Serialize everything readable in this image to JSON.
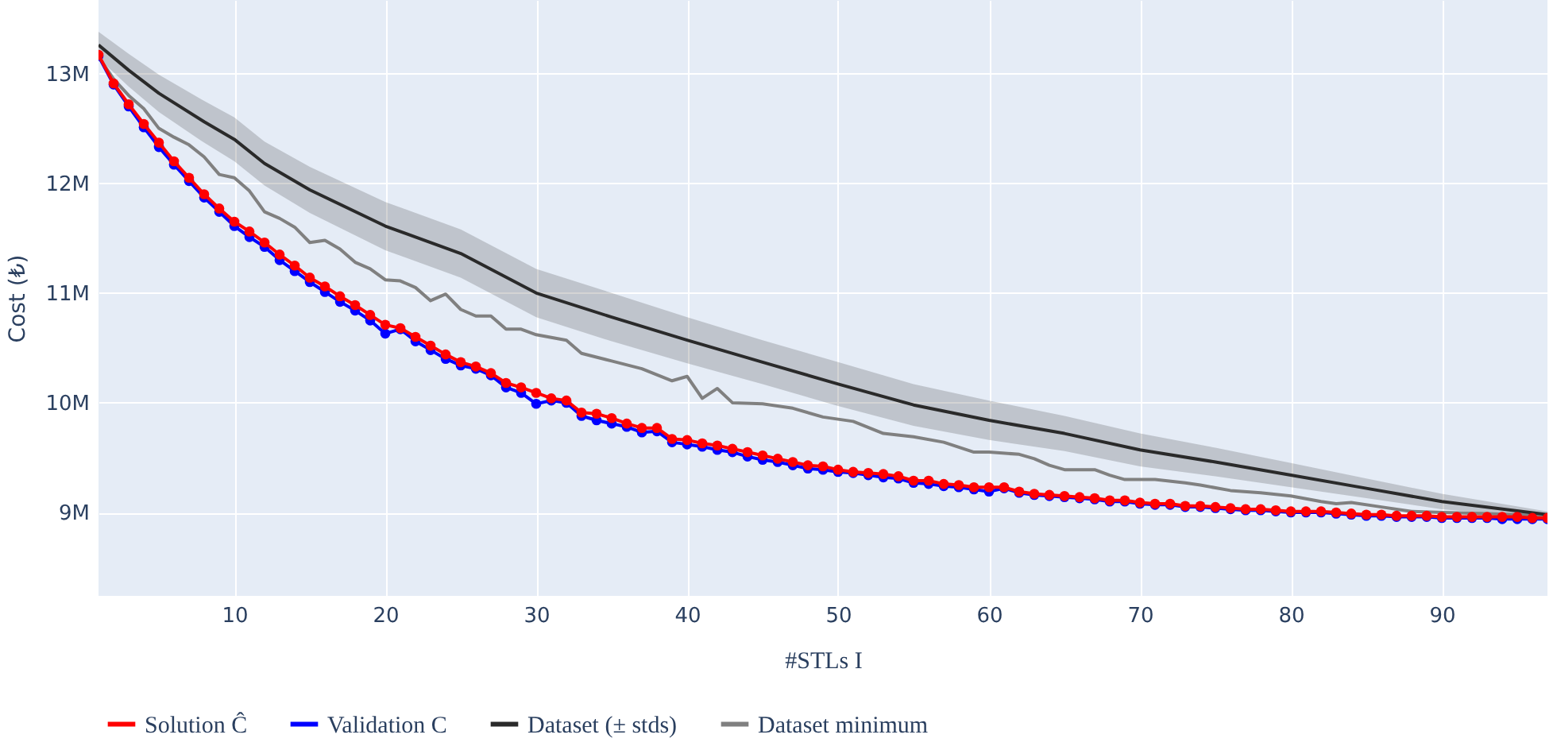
{
  "chart_data": {
    "type": "line",
    "xlabel": "#STLs I",
    "ylabel": "Cost (₺)",
    "xlim": [
      1,
      97
    ],
    "xticks": [
      10,
      20,
      30,
      40,
      50,
      60,
      70,
      80,
      90
    ],
    "ylim": [
      8.24,
      13.67
    ],
    "yticks": [
      {
        "value": 9,
        "label": "9M"
      },
      {
        "value": 10,
        "label": "10M"
      },
      {
        "value": 11,
        "label": "11M"
      },
      {
        "value": 12,
        "label": "12M"
      },
      {
        "value": 13,
        "label": "13M"
      }
    ],
    "grid": true,
    "legend": "bottom",
    "line_style": "solid",
    "series": [
      {
        "name": "Solution Ĉ",
        "color": "#ff0000",
        "marker": "circle",
        "x": [
          1,
          2,
          3,
          4,
          5,
          6,
          7,
          8,
          9,
          10,
          11,
          12,
          13,
          14,
          15,
          16,
          17,
          18,
          19,
          20,
          21,
          22,
          23,
          24,
          25,
          26,
          27,
          28,
          29,
          30,
          31,
          32,
          33,
          34,
          35,
          36,
          37,
          38,
          39,
          40,
          41,
          42,
          43,
          44,
          45,
          46,
          47,
          48,
          49,
          50,
          51,
          52,
          53,
          54,
          55,
          56,
          57,
          58,
          59,
          60,
          61,
          62,
          63,
          64,
          65,
          66,
          67,
          68,
          69,
          70,
          71,
          72,
          73,
          74,
          75,
          76,
          77,
          78,
          79,
          80,
          81,
          82,
          83,
          84,
          85,
          86,
          87,
          88,
          89,
          90,
          91,
          92,
          93,
          94,
          95,
          96,
          97
        ],
        "values": [
          13.17,
          12.91,
          12.72,
          12.54,
          12.37,
          12.2,
          12.05,
          11.9,
          11.77,
          11.65,
          11.56,
          11.46,
          11.35,
          11.25,
          11.14,
          11.06,
          10.97,
          10.89,
          10.8,
          10.71,
          10.68,
          10.6,
          10.52,
          10.44,
          10.37,
          10.33,
          10.27,
          10.18,
          10.14,
          10.09,
          10.04,
          10.02,
          9.91,
          9.9,
          9.86,
          9.81,
          9.77,
          9.77,
          9.67,
          9.66,
          9.63,
          9.61,
          9.58,
          9.55,
          9.52,
          9.49,
          9.46,
          9.43,
          9.42,
          9.39,
          9.37,
          9.36,
          9.35,
          9.33,
          9.29,
          9.29,
          9.26,
          9.25,
          9.23,
          9.23,
          9.23,
          9.19,
          9.17,
          9.16,
          9.15,
          9.14,
          9.13,
          9.11,
          9.11,
          9.09,
          9.08,
          9.08,
          9.06,
          9.06,
          9.05,
          9.04,
          9.03,
          9.03,
          9.02,
          9.01,
          9.01,
          9.01,
          9.0,
          8.99,
          8.98,
          8.98,
          8.97,
          8.97,
          8.97,
          8.96,
          8.96,
          8.96,
          8.96,
          8.96,
          8.96,
          8.95,
          8.95
        ]
      },
      {
        "name": "Validation C",
        "color": "#0000ff",
        "marker": "circle",
        "x": [
          1,
          2,
          3,
          4,
          5,
          6,
          7,
          8,
          9,
          10,
          11,
          12,
          13,
          14,
          15,
          16,
          17,
          18,
          19,
          20,
          21,
          22,
          23,
          24,
          25,
          26,
          27,
          28,
          29,
          30,
          31,
          32,
          33,
          34,
          35,
          36,
          37,
          38,
          39,
          40,
          41,
          42,
          43,
          44,
          45,
          46,
          47,
          48,
          49,
          50,
          51,
          52,
          53,
          54,
          55,
          56,
          57,
          58,
          59,
          60,
          61,
          62,
          63,
          64,
          65,
          66,
          67,
          68,
          69,
          70,
          71,
          72,
          73,
          74,
          75,
          76,
          77,
          78,
          79,
          80,
          81,
          82,
          83,
          84,
          85,
          86,
          87,
          88,
          89,
          90,
          91,
          92,
          93,
          94,
          95,
          96,
          97
        ],
        "values": [
          13.16,
          12.9,
          12.7,
          12.51,
          12.33,
          12.17,
          12.02,
          11.87,
          11.74,
          11.61,
          11.51,
          11.42,
          11.3,
          11.2,
          11.1,
          11.01,
          10.92,
          10.84,
          10.75,
          10.63,
          10.67,
          10.56,
          10.48,
          10.4,
          10.34,
          10.31,
          10.25,
          10.14,
          10.09,
          9.99,
          10.02,
          10.0,
          9.88,
          9.84,
          9.81,
          9.78,
          9.73,
          9.74,
          9.64,
          9.62,
          9.6,
          9.57,
          9.55,
          9.51,
          9.48,
          9.46,
          9.43,
          9.4,
          9.39,
          9.37,
          9.36,
          9.34,
          9.32,
          9.31,
          9.27,
          9.26,
          9.24,
          9.23,
          9.21,
          9.19,
          9.22,
          9.18,
          9.16,
          9.15,
          9.14,
          9.13,
          9.12,
          9.1,
          9.1,
          9.08,
          9.07,
          9.07,
          9.05,
          9.05,
          9.04,
          9.03,
          9.02,
          9.02,
          9.01,
          9.0,
          9.0,
          9.0,
          8.99,
          8.98,
          8.97,
          8.97,
          8.96,
          8.96,
          8.96,
          8.95,
          8.95,
          8.95,
          8.95,
          8.94,
          8.94,
          8.94,
          8.94
        ]
      },
      {
        "name": "Dataset (± stds)",
        "color": "#2a2a2a",
        "marker": "none",
        "x": [
          1,
          3,
          5,
          8,
          10,
          12,
          15,
          20,
          25,
          30,
          35,
          40,
          45,
          50,
          55,
          60,
          65,
          70,
          75,
          80,
          85,
          90,
          97
        ],
        "values": [
          13.26,
          13.03,
          12.82,
          12.56,
          12.4,
          12.18,
          11.94,
          11.61,
          11.36,
          11.0,
          10.78,
          10.57,
          10.37,
          10.17,
          9.98,
          9.84,
          9.72,
          9.57,
          9.46,
          9.34,
          9.22,
          9.1,
          8.98
        ],
        "lower": [
          13.14,
          12.88,
          12.65,
          12.37,
          12.2,
          11.98,
          11.73,
          11.39,
          11.14,
          10.78,
          10.56,
          10.36,
          10.17,
          9.97,
          9.79,
          9.66,
          9.56,
          9.42,
          9.33,
          9.23,
          9.13,
          9.03,
          8.95
        ],
        "upper": [
          13.38,
          13.18,
          12.99,
          12.75,
          12.6,
          12.38,
          12.15,
          11.83,
          11.58,
          11.22,
          11.0,
          10.78,
          10.57,
          10.37,
          10.17,
          10.02,
          9.88,
          9.72,
          9.59,
          9.45,
          9.31,
          9.17,
          9.01
        ]
      },
      {
        "name": "Dataset minimum",
        "color": "#808080",
        "marker": "none",
        "x": [
          1,
          2,
          3,
          4,
          5,
          6,
          7,
          8,
          9,
          10,
          11,
          12,
          13,
          14,
          15,
          16,
          17,
          18,
          19,
          20,
          21,
          22,
          23,
          24,
          25,
          26,
          27,
          28,
          29,
          30,
          32,
          33,
          35,
          37,
          39,
          40,
          41,
          42,
          43,
          45,
          47,
          49,
          51,
          53,
          55,
          57,
          59,
          60,
          62,
          63,
          64,
          65,
          67,
          68,
          69,
          71,
          73,
          74,
          76,
          78,
          80,
          82,
          83,
          84,
          86,
          88,
          90,
          93,
          97
        ],
        "values": [
          13.15,
          12.95,
          12.8,
          12.68,
          12.5,
          12.42,
          12.35,
          12.24,
          12.08,
          12.05,
          11.93,
          11.74,
          11.68,
          11.6,
          11.46,
          11.48,
          11.4,
          11.28,
          11.22,
          11.12,
          11.11,
          11.05,
          10.93,
          10.99,
          10.85,
          10.79,
          10.79,
          10.67,
          10.67,
          10.62,
          10.57,
          10.45,
          10.38,
          10.31,
          10.2,
          10.24,
          10.04,
          10.13,
          10.0,
          9.99,
          9.95,
          9.87,
          9.83,
          9.72,
          9.69,
          9.64,
          9.55,
          9.55,
          9.53,
          9.49,
          9.43,
          9.39,
          9.39,
          9.34,
          9.3,
          9.3,
          9.27,
          9.25,
          9.2,
          9.18,
          9.15,
          9.1,
          9.08,
          9.09,
          9.05,
          9.01,
          9.0,
          8.99,
          8.97
        ]
      }
    ]
  }
}
